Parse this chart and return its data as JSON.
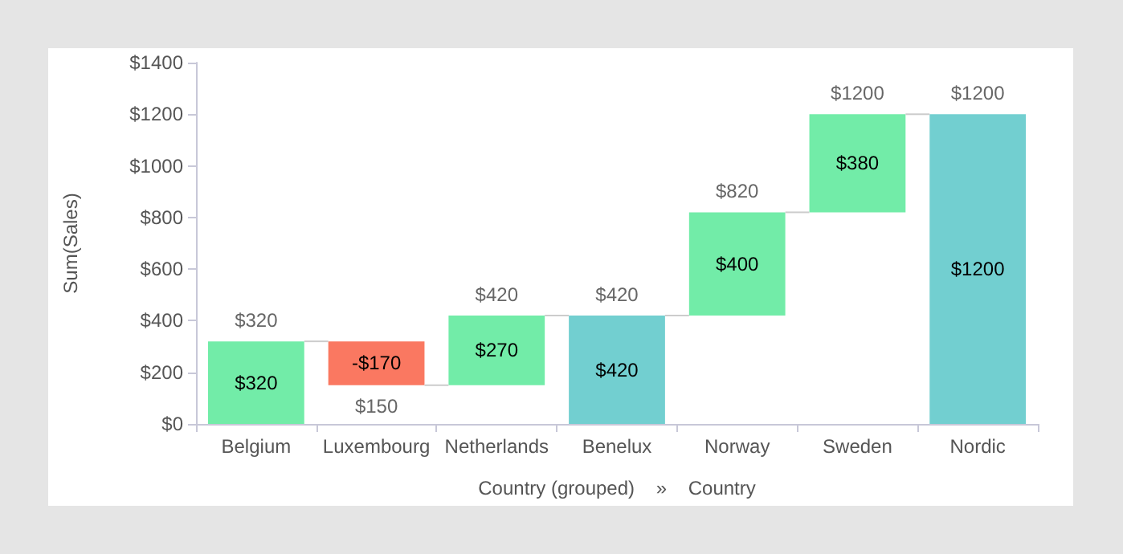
{
  "chart_data": {
    "type": "bar",
    "xlabel": "Country (grouped)    »    Country",
    "ylabel": "Sum(Sales)",
    "categories": [
      "Belgium",
      "Luxembourg",
      "Netherlands",
      "Benelux",
      "Norway",
      "Sweden",
      "Nordic"
    ],
    "values": [
      320,
      -170,
      270,
      420,
      400,
      380,
      1200
    ],
    "base": [
      0,
      320,
      150,
      0,
      420,
      820,
      0
    ],
    "colors": [
      "#72eca8",
      "#fa7861",
      "#72eca8",
      "#72cfd0",
      "#72eca8",
      "#72eca8",
      "#72cfd0"
    ],
    "value_labels": [
      "$320",
      "-$170",
      "$270",
      "$420",
      "$400",
      "$380",
      "$1200"
    ],
    "annotations": [
      {
        "text": "$320",
        "x": "Belgium",
        "y": 320
      },
      {
        "text": "$150",
        "x": "Luxembourg",
        "y": 150
      },
      {
        "text": "$420",
        "x": "Netherlands",
        "y": 420
      },
      {
        "text": "$420",
        "x": "Benelux",
        "y": 420
      },
      {
        "text": "$820",
        "x": "Norway",
        "y": 820
      },
      {
        "text": "$1200",
        "x": "Sweden",
        "y": 1200
      },
      {
        "text": "$1200",
        "x": "Nordic",
        "y": 1200
      }
    ],
    "ylim": [
      0,
      1400
    ],
    "yticks": [
      {
        "value": 0,
        "label": "$0"
      },
      {
        "value": 200,
        "label": "$200"
      },
      {
        "value": 400,
        "label": "$400"
      },
      {
        "value": 600,
        "label": "$600"
      },
      {
        "value": 800,
        "label": "$800"
      },
      {
        "value": 1000,
        "label": "$1000"
      },
      {
        "value": 1200,
        "label": "$1200"
      },
      {
        "value": 1400,
        "label": "$1400"
      }
    ],
    "grid": false
  }
}
